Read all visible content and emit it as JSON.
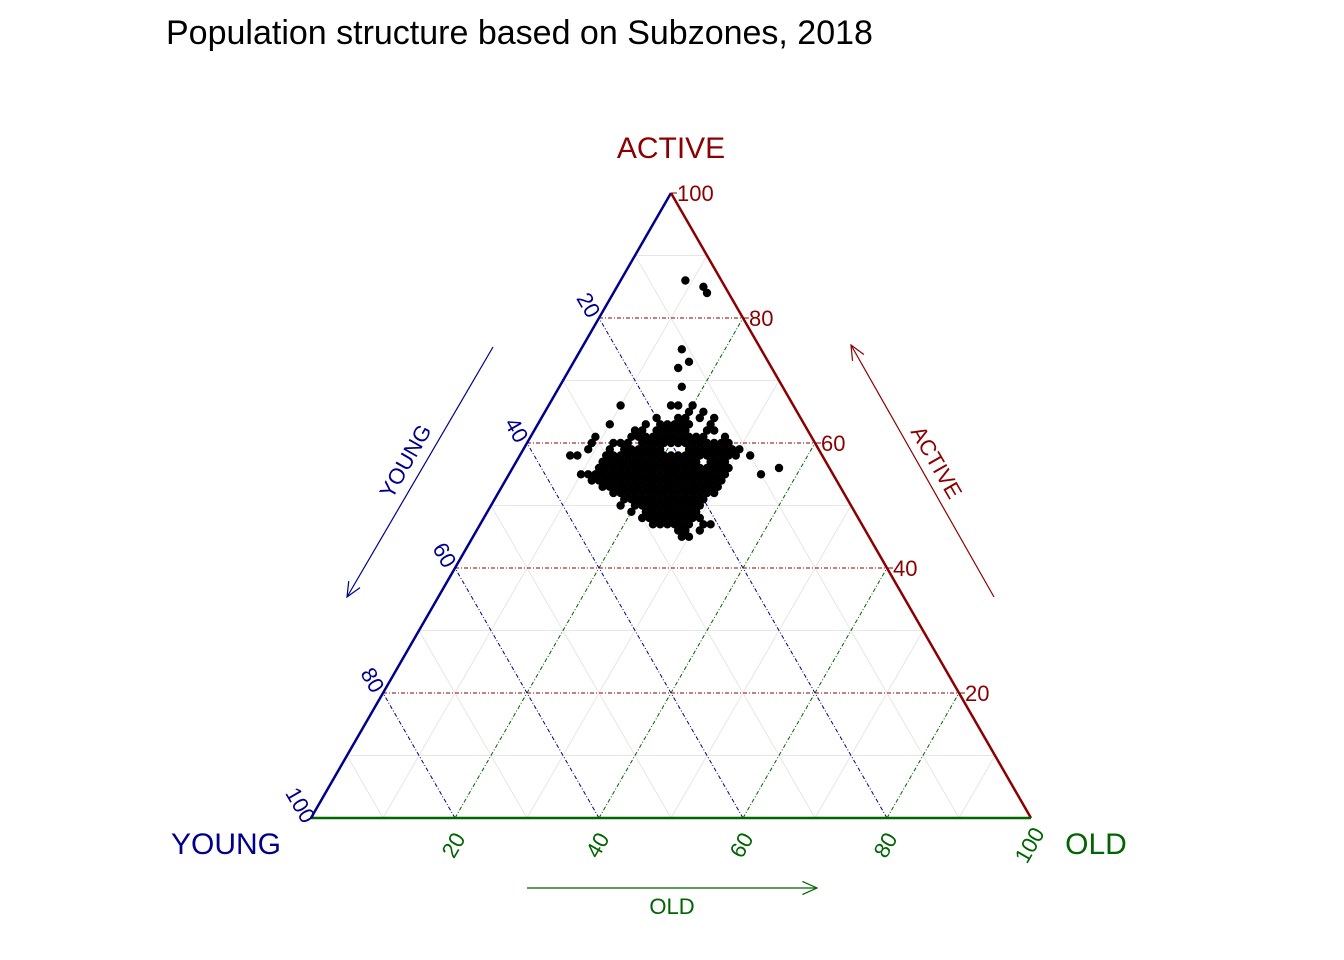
{
  "chart_data": {
    "type": "scatter",
    "subtype": "ternary",
    "title": "Population structure based on Subzones, 2018",
    "axes": {
      "top": {
        "name": "ACTIVE",
        "color": "#8B0000",
        "arrow_label": "ACTIVE"
      },
      "left": {
        "name": "YOUNG",
        "color": "#00008B",
        "arrow_label": "YOUNG"
      },
      "right": {
        "name": "OLD",
        "color": "#006400",
        "arrow_label": "OLD"
      }
    },
    "ticks": {
      "active": [
        "20",
        "40",
        "60",
        "80",
        "100"
      ],
      "young": [
        "20",
        "40",
        "60",
        "80",
        "100"
      ],
      "old": [
        "20",
        "40",
        "60",
        "80",
        "100"
      ]
    },
    "grid": true,
    "marker_color": "#000000",
    "points_columns": [
      "young",
      "active",
      "old"
    ],
    "points": [
      [
        5,
        86,
        9
      ],
      [
        3,
        84,
        13
      ],
      [
        3,
        85,
        12
      ],
      [
        11,
        75,
        14
      ],
      [
        11,
        73,
        16
      ],
      [
        13,
        72,
        15
      ],
      [
        14,
        69,
        17
      ],
      [
        16,
        66,
        18
      ],
      [
        17,
        66,
        17
      ],
      [
        20,
        62,
        18
      ],
      [
        20,
        61,
        19
      ],
      [
        21,
        60,
        19
      ],
      [
        21,
        61,
        18
      ],
      [
        20,
        60,
        20
      ],
      [
        22,
        60,
        18
      ],
      [
        22,
        59,
        19
      ],
      [
        23,
        58,
        19
      ],
      [
        24,
        58,
        18
      ],
      [
        24,
        59,
        17
      ],
      [
        22,
        58,
        20
      ],
      [
        23,
        57,
        20
      ],
      [
        25,
        57,
        18
      ],
      [
        25,
        56,
        19
      ],
      [
        26,
        56,
        18
      ],
      [
        26,
        55,
        19
      ],
      [
        27,
        55,
        18
      ],
      [
        27,
        56,
        17
      ],
      [
        26,
        57,
        17
      ],
      [
        24,
        56,
        20
      ],
      [
        25,
        55,
        20
      ],
      [
        24,
        55,
        21
      ],
      [
        23,
        55,
        22
      ],
      [
        25,
        54,
        21
      ],
      [
        26,
        54,
        20
      ],
      [
        27,
        54,
        19
      ],
      [
        26,
        53,
        21
      ],
      [
        25,
        53,
        22
      ],
      [
        24,
        53,
        23
      ],
      [
        23,
        53,
        24
      ],
      [
        27,
        53,
        20
      ],
      [
        28,
        53,
        19
      ],
      [
        28,
        54,
        18
      ],
      [
        29,
        54,
        17
      ],
      [
        29,
        55,
        16
      ],
      [
        28,
        55,
        17
      ],
      [
        30,
        55,
        15
      ],
      [
        29,
        56,
        15
      ],
      [
        28,
        56,
        16
      ],
      [
        27,
        57,
        16
      ],
      [
        28,
        57,
        15
      ],
      [
        26,
        58,
        16
      ],
      [
        25,
        58,
        17
      ],
      [
        27,
        58,
        15
      ],
      [
        24,
        57,
        19
      ],
      [
        23,
        56,
        21
      ],
      [
        22,
        56,
        22
      ],
      [
        22,
        55,
        23
      ],
      [
        21,
        55,
        24
      ],
      [
        21,
        56,
        23
      ],
      [
        22,
        57,
        21
      ],
      [
        23,
        59,
        18
      ],
      [
        24,
        60,
        16
      ],
      [
        25,
        59,
        16
      ],
      [
        26,
        59,
        15
      ],
      [
        21,
        58,
        21
      ],
      [
        20,
        58,
        22
      ],
      [
        20,
        57,
        23
      ],
      [
        19,
        57,
        24
      ],
      [
        19,
        56,
        25
      ],
      [
        20,
        56,
        24
      ],
      [
        19,
        58,
        23
      ],
      [
        18,
        58,
        24
      ],
      [
        18,
        57,
        25
      ],
      [
        20,
        55,
        25
      ],
      [
        19,
        55,
        26
      ],
      [
        18,
        55,
        27
      ],
      [
        18,
        56,
        26
      ],
      [
        17,
        56,
        27
      ],
      [
        17,
        55,
        28
      ],
      [
        16,
        55,
        29
      ],
      [
        17,
        54,
        29
      ],
      [
        18,
        54,
        28
      ],
      [
        19,
        54,
        27
      ],
      [
        20,
        54,
        26
      ],
      [
        21,
        54,
        25
      ],
      [
        22,
        54,
        24
      ],
      [
        23,
        54,
        23
      ],
      [
        24,
        54,
        22
      ],
      [
        18,
        53,
        29
      ],
      [
        19,
        53,
        28
      ],
      [
        20,
        53,
        27
      ],
      [
        21,
        53,
        26
      ],
      [
        22,
        53,
        25
      ],
      [
        20,
        52,
        28
      ],
      [
        21,
        52,
        27
      ],
      [
        22,
        52,
        26
      ],
      [
        23,
        52,
        25
      ],
      [
        24,
        52,
        24
      ],
      [
        25,
        52,
        23
      ],
      [
        26,
        52,
        22
      ],
      [
        24,
        51,
        25
      ],
      [
        25,
        51,
        24
      ],
      [
        23,
        51,
        26
      ],
      [
        26,
        51,
        23
      ],
      [
        22,
        51,
        27
      ],
      [
        27,
        52,
        21
      ],
      [
        21,
        51,
        28
      ],
      [
        25,
        50,
        25
      ],
      [
        24,
        50,
        26
      ],
      [
        23,
        50,
        27
      ],
      [
        26,
        50,
        24
      ],
      [
        22,
        50,
        28
      ],
      [
        24,
        49,
        27
      ],
      [
        25,
        49,
        26
      ],
      [
        26,
        49,
        25
      ],
      [
        23,
        49,
        28
      ],
      [
        29,
        57,
        14
      ],
      [
        28,
        58,
        14
      ],
      [
        30,
        56,
        14
      ],
      [
        31,
        57,
        12
      ],
      [
        30,
        58,
        12
      ],
      [
        29,
        59,
        12
      ],
      [
        31,
        55,
        14
      ],
      [
        32,
        56,
        12
      ],
      [
        27,
        59,
        14
      ],
      [
        28,
        60,
        12
      ],
      [
        23,
        61,
        16
      ],
      [
        25,
        61,
        14
      ],
      [
        24,
        62,
        14
      ],
      [
        21,
        62,
        17
      ],
      [
        22,
        63,
        15
      ],
      [
        20,
        64,
        16
      ],
      [
        19,
        62,
        19
      ],
      [
        18,
        60,
        22
      ],
      [
        17,
        59,
        24
      ],
      [
        16,
        58,
        26
      ],
      [
        15,
        57,
        28
      ],
      [
        14,
        56,
        30
      ],
      [
        15,
        56,
        29
      ],
      [
        16,
        57,
        27
      ],
      [
        17,
        58,
        25
      ],
      [
        18,
        59,
        23
      ],
      [
        19,
        60,
        21
      ],
      [
        28,
        52,
        20
      ],
      [
        29,
        53,
        18
      ],
      [
        30,
        54,
        16
      ],
      [
        31,
        54,
        15
      ],
      [
        27,
        51,
        22
      ],
      [
        29,
        52,
        19
      ],
      [
        28,
        51,
        21
      ],
      [
        30,
        53,
        17
      ],
      [
        32,
        54,
        14
      ],
      [
        33,
        55,
        12
      ],
      [
        26,
        48,
        26
      ],
      [
        27,
        49,
        24
      ],
      [
        28,
        50,
        22
      ],
      [
        29,
        51,
        20
      ],
      [
        30,
        52,
        18
      ],
      [
        31,
        53,
        16
      ],
      [
        27,
        50,
        23
      ],
      [
        25,
        48,
        27
      ],
      [
        24,
        48,
        28
      ],
      [
        28,
        49,
        23
      ],
      [
        29,
        50,
        21
      ],
      [
        30,
        51,
        19
      ],
      [
        23,
        48,
        29
      ],
      [
        25,
        47,
        28
      ],
      [
        26,
        47,
        27
      ],
      [
        22,
        49,
        29
      ],
      [
        21,
        50,
        29
      ],
      [
        20,
        51,
        29
      ],
      [
        19,
        52,
        29
      ],
      [
        18,
        52,
        30
      ],
      [
        17,
        53,
        30
      ],
      [
        16,
        54,
        30
      ],
      [
        15,
        55,
        30
      ],
      [
        16,
        56,
        28
      ],
      [
        14,
        57,
        29
      ],
      [
        15,
        58,
        27
      ],
      [
        16,
        59,
        25
      ],
      [
        17,
        60,
        23
      ],
      [
        18,
        61,
        21
      ],
      [
        19,
        61,
        20
      ],
      [
        22,
        61,
        17
      ],
      [
        23,
        60,
        17
      ],
      [
        26,
        60,
        14
      ],
      [
        27,
        60,
        13
      ],
      [
        29,
        58,
        13
      ],
      [
        30,
        57,
        13
      ],
      [
        31,
        56,
        13
      ],
      [
        32,
        55,
        13
      ],
      [
        33,
        54,
        13
      ],
      [
        32,
        53,
        15
      ],
      [
        31,
        52,
        17
      ],
      [
        30,
        50,
        20
      ],
      [
        29,
        49,
        22
      ],
      [
        28,
        48,
        24
      ],
      [
        27,
        48,
        25
      ],
      [
        26,
        46,
        28
      ],
      [
        27,
        47,
        26
      ],
      [
        28,
        47,
        25
      ],
      [
        29,
        48,
        23
      ],
      [
        31,
        51,
        18
      ],
      [
        32,
        52,
        16
      ],
      [
        33,
        53,
        14
      ],
      [
        34,
        54,
        12
      ],
      [
        35,
        55,
        10
      ],
      [
        34,
        55,
        11
      ],
      [
        12,
        60,
        28
      ],
      [
        13,
        60,
        27
      ],
      [
        13,
        59,
        28
      ],
      [
        12,
        59,
        29
      ],
      [
        11,
        59,
        30
      ],
      [
        14,
        62,
        24
      ],
      [
        15,
        61,
        24
      ],
      [
        12,
        61,
        27
      ],
      [
        13,
        62,
        25
      ],
      [
        14,
        60,
        26
      ],
      [
        15,
        60,
        25
      ],
      [
        16,
        61,
        23
      ],
      [
        17,
        62,
        21
      ],
      [
        14,
        64,
        22
      ],
      [
        15,
        65,
        20
      ],
      [
        16,
        63,
        21
      ],
      [
        13,
        63,
        24
      ],
      [
        12,
        64,
        24
      ],
      [
        13,
        65,
        22
      ],
      [
        14,
        66,
        20
      ],
      [
        16,
        64,
        20
      ],
      [
        17,
        64,
        19
      ],
      [
        18,
        63,
        19
      ],
      [
        19,
        63,
        18
      ],
      [
        20,
        63,
        17
      ],
      [
        24,
        66,
        10
      ],
      [
        27,
        63,
        10
      ],
      [
        30,
        61,
        9
      ],
      [
        31,
        60,
        9
      ],
      [
        32,
        59,
        9
      ],
      [
        34,
        58,
        8
      ],
      [
        35,
        58,
        7
      ],
      [
        21,
        57,
        22
      ],
      [
        23,
        62,
        15
      ],
      [
        24,
        61,
        15
      ],
      [
        18,
        62,
        20
      ],
      [
        17,
        63,
        20
      ],
      [
        17,
        61,
        22
      ],
      [
        16,
        60,
        24
      ],
      [
        15,
        59,
        26
      ],
      [
        14,
        59,
        27
      ],
      [
        13,
        58,
        29
      ],
      [
        14,
        58,
        28
      ],
      [
        12,
        58,
        30
      ],
      [
        10,
        58,
        32
      ],
      [
        7,
        56,
        37
      ],
      [
        10,
        55,
        35
      ],
      [
        24,
        47,
        29
      ],
      [
        23,
        46,
        31
      ],
      [
        22,
        47,
        31
      ],
      [
        21,
        47,
        32
      ],
      [
        22,
        48,
        30
      ],
      [
        26,
        45,
        29
      ],
      [
        25,
        45,
        30
      ],
      [
        25,
        46,
        29
      ],
      [
        30,
        48,
        22
      ],
      [
        31,
        49,
        20
      ],
      [
        32,
        50,
        18
      ],
      [
        29,
        47,
        24
      ]
    ]
  }
}
